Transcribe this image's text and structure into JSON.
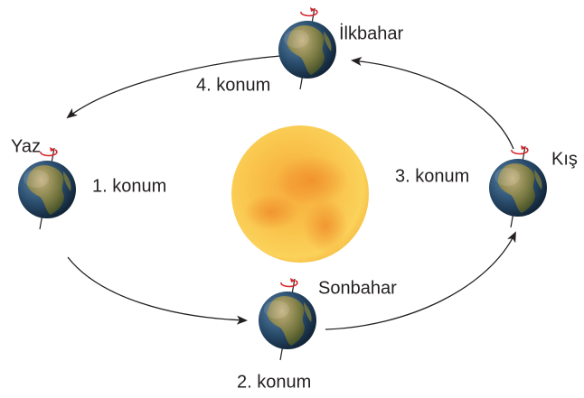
{
  "nodes": [
    {
      "season": "Yaz",
      "position": "1. konum"
    },
    {
      "season": "Sonbahar",
      "position": "2. konum"
    },
    {
      "season": "Kış",
      "position": "3. konum"
    },
    {
      "season": "İlkbahar",
      "position": "4. konum"
    }
  ]
}
